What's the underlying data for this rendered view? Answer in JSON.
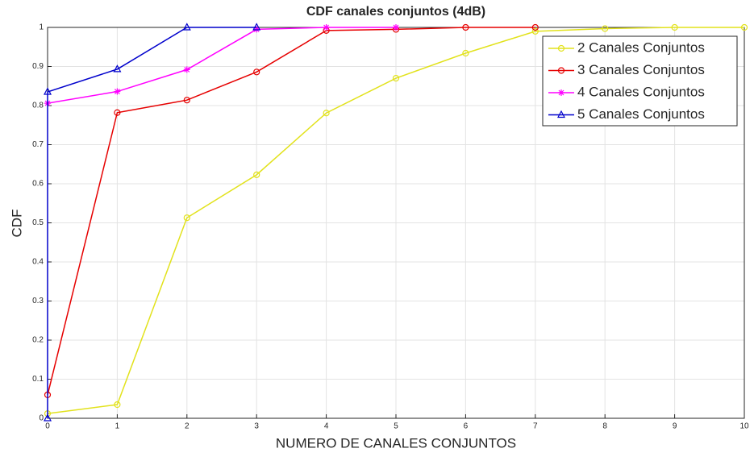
{
  "chart_data": {
    "type": "line",
    "title": "CDF canales conjuntos (4dB)",
    "x_label": "NUMERO DE CANALES CONJUNTOS",
    "y_label": "CDF",
    "series": [
      {
        "name": "2  Canales Conjuntos",
        "color": "#e2e21c",
        "marker": "circle",
        "x": [
          0,
          1,
          2,
          3,
          4,
          5,
          6,
          7,
          8,
          9,
          10
        ],
        "values": [
          0.012,
          0.035,
          0.513,
          0.623,
          0.781,
          0.87,
          0.934,
          0.99,
          0.997,
          1,
          1
        ]
      },
      {
        "name": "3  Canales Conjuntos",
        "color": "#e60000",
        "marker": "circle",
        "x": [
          0,
          1,
          2,
          3,
          4,
          5,
          6,
          7
        ],
        "values": [
          0.06,
          0.782,
          0.814,
          0.886,
          0.992,
          0.995,
          1,
          1
        ]
      },
      {
        "name": "4  Canales Conjuntos",
        "color": "#ff00ff",
        "marker": "star",
        "x": [
          0,
          1,
          2,
          3,
          4,
          5
        ],
        "values": [
          0.806,
          0.836,
          0.892,
          0.995,
          1,
          1
        ]
      },
      {
        "name": "5  Canales Conjuntos",
        "color": "#0000cc",
        "marker": "triangle",
        "x": [
          0,
          0,
          1,
          2,
          3
        ],
        "values": [
          0,
          0.835,
          0.893,
          1,
          1
        ]
      }
    ],
    "xlim": [
      0,
      10
    ],
    "xticks": [
      0,
      1,
      2,
      3,
      4,
      5,
      6,
      7,
      8,
      9,
      10
    ],
    "ylim": [
      0,
      1
    ],
    "yticks": [
      0,
      0.1,
      0.2,
      0.3,
      0.4,
      0.5,
      0.6,
      0.7,
      0.8,
      0.9,
      1
    ],
    "grid": true,
    "legend": "top-right"
  }
}
